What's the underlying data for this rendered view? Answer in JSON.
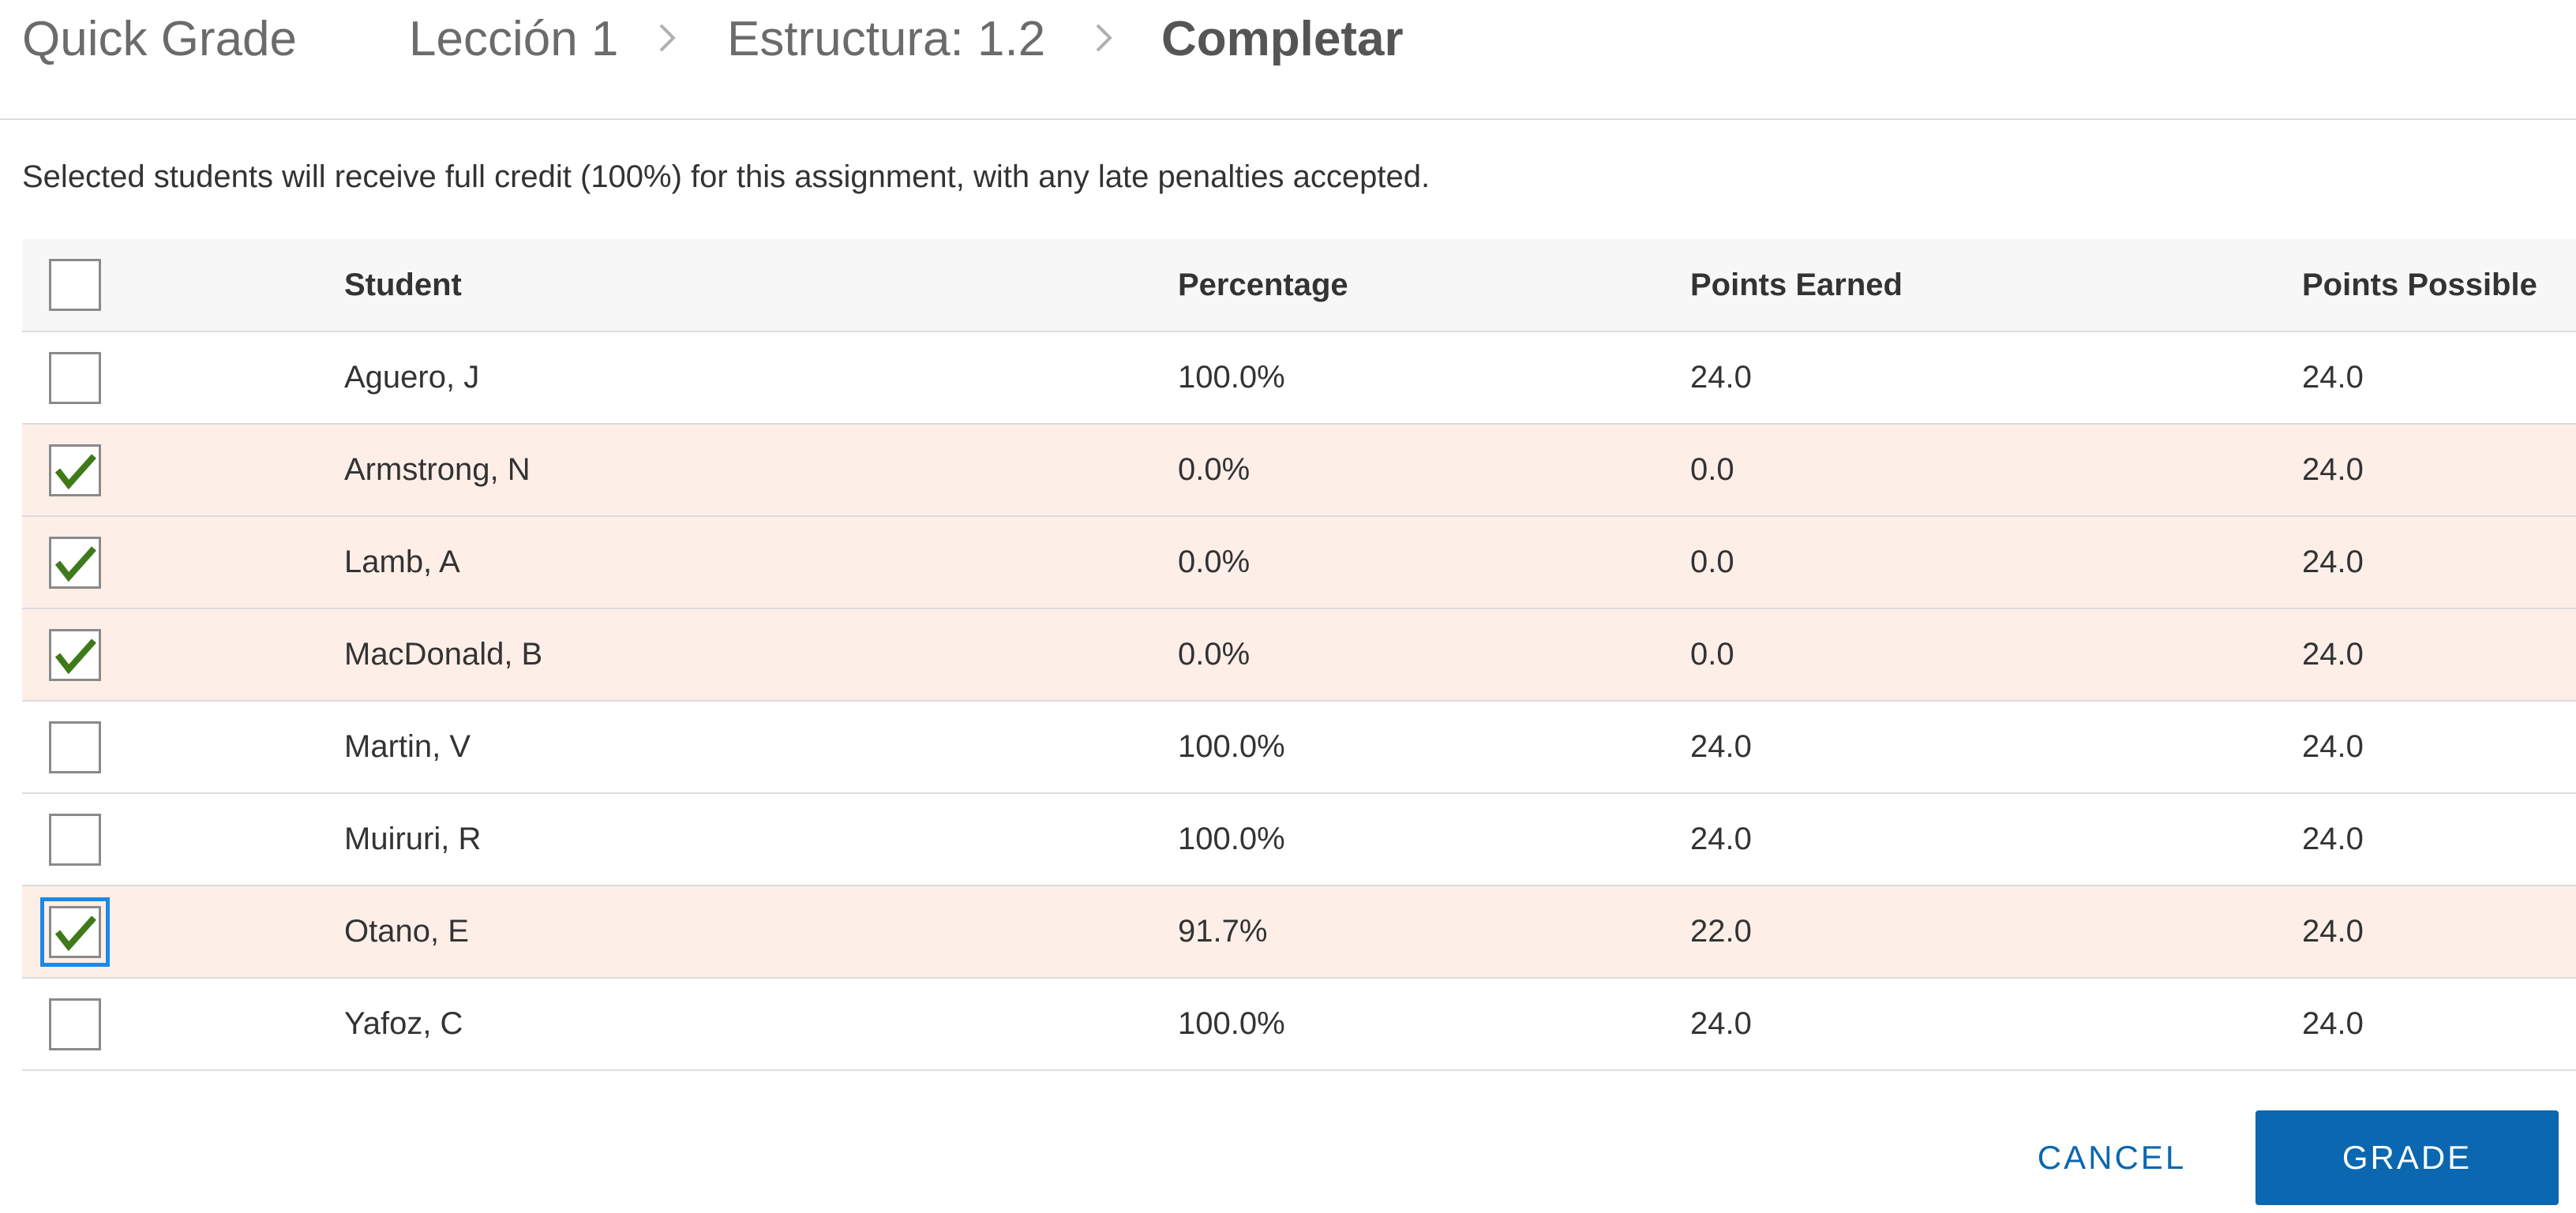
{
  "header": {
    "app_title": "Quick Grade",
    "breadcrumb": [
      "Lección 1",
      "Estructura: 1.2",
      "Completar"
    ]
  },
  "instructions": "Selected students will receive full credit (100%) for this assignment, with any late penalties accepted.",
  "table": {
    "columns": [
      "Student",
      "Percentage",
      "Points Earned",
      "Points Possible"
    ],
    "select_all_checked": false,
    "rows": [
      {
        "student": "Aguero, J",
        "percentage": "100.0%",
        "points_earned": "24.0",
        "points_possible": "24.0",
        "selected": false
      },
      {
        "student": "Armstrong, N",
        "percentage": "0.0%",
        "points_earned": "0.0",
        "points_possible": "24.0",
        "selected": true
      },
      {
        "student": "Lamb, A",
        "percentage": "0.0%",
        "points_earned": "0.0",
        "points_possible": "24.0",
        "selected": true
      },
      {
        "student": "MacDonald, B",
        "percentage": "0.0%",
        "points_earned": "0.0",
        "points_possible": "24.0",
        "selected": true
      },
      {
        "student": "Martin, V",
        "percentage": "100.0%",
        "points_earned": "24.0",
        "points_possible": "24.0",
        "selected": false
      },
      {
        "student": "Muiruri, R",
        "percentage": "100.0%",
        "points_earned": "24.0",
        "points_possible": "24.0",
        "selected": false
      },
      {
        "student": "Otano, E",
        "percentage": "91.7%",
        "points_earned": "22.0",
        "points_possible": "24.0",
        "selected": true,
        "focused": true
      },
      {
        "student": "Yafoz, C",
        "percentage": "100.0%",
        "points_earned": "24.0",
        "points_possible": "24.0",
        "selected": false
      }
    ]
  },
  "actions": {
    "cancel_label": "CANCEL",
    "grade_label": "GRADE"
  },
  "colors": {
    "accent": "#0a67b0",
    "check": "#3f7a1a",
    "selected_row_bg": "#fdefe8",
    "focus_ring": "#1e88e5"
  }
}
